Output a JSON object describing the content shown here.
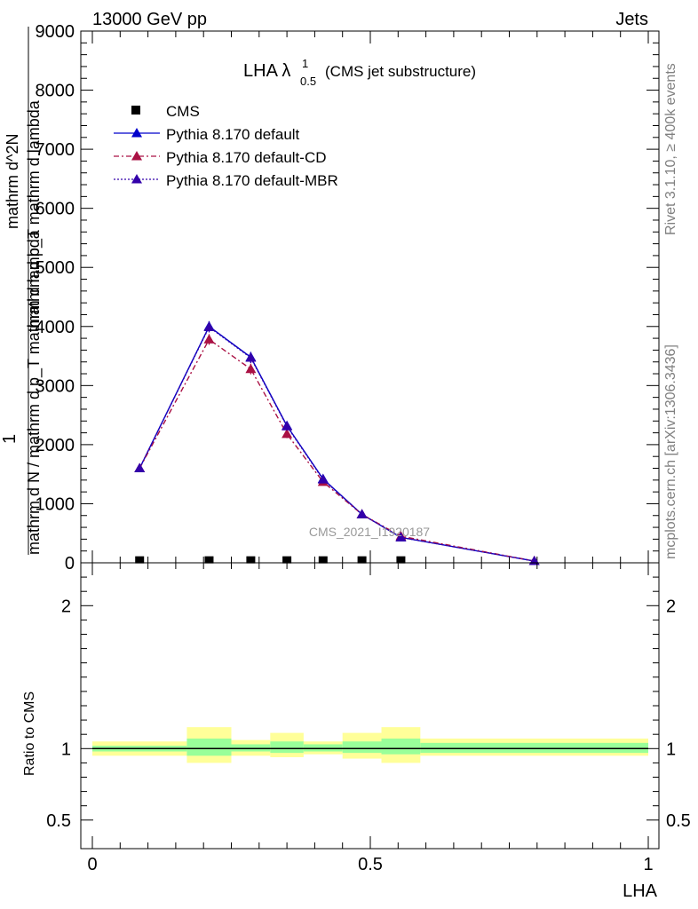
{
  "header": {
    "left": "13000 GeV pp",
    "right": "Jets"
  },
  "side_texts": {
    "rivet": "Rivet 3.1.10, ≥ 400k events",
    "mcplots": "mcplots.cern.ch [arXiv:1306.3436]"
  },
  "title": {
    "main": "LHA λ",
    "sup": "1",
    "sub": "0.5",
    "note": "(CMS jet substructure)"
  },
  "watermark": "CMS_2021_I1920187",
  "ylabel_top": {
    "numerator_one": "1",
    "denominator": "mathrm d N / mathrm d p_T mathrm d lambda",
    "numerator_parts": [
      "mathrm d^2N",
      "mathrm d p_T mathrm d lambda"
    ]
  },
  "ylabel_bottom": "Ratio to CMS",
  "xlabel": "LHA",
  "colors": {
    "default": "#0000cc",
    "cd": "#aa1144",
    "mbr": "#3300aa",
    "band_outer": "#ffff99",
    "band_inner": "#99ff99",
    "ref_line": "#000000"
  },
  "chart_data": [
    {
      "type": "line",
      "panel": "main",
      "xlim": [
        0,
        1
      ],
      "ylim": [
        0,
        9000
      ],
      "y_ticks": [
        0,
        1000,
        2000,
        3000,
        4000,
        5000,
        6000,
        7000,
        8000,
        9000
      ],
      "y_tick_labels": [
        "0",
        "1000",
        "2000",
        "3000",
        "4000",
        "5000",
        "6000",
        "7000",
        "8000",
        "9000"
      ],
      "legend_position": "top-left",
      "series": [
        {
          "name": "CMS",
          "style": "marker-square",
          "x": [
            0.085,
            0.21,
            0.285,
            0.35,
            0.415,
            0.485,
            0.555
          ],
          "y": [
            5,
            5,
            5,
            5,
            5,
            5,
            5
          ]
        },
        {
          "name": "Pythia 8.170 default",
          "style": "solid",
          "x": [
            0.085,
            0.21,
            0.285,
            0.35,
            0.415,
            0.485,
            0.555,
            0.795
          ],
          "y": [
            1600,
            4000,
            3480,
            2320,
            1420,
            820,
            430,
            30
          ],
          "err": [
            0,
            90,
            90,
            70,
            50,
            40,
            30,
            10
          ]
        },
        {
          "name": "Pythia 8.170 default-CD",
          "style": "dashdot",
          "x": [
            0.085,
            0.21,
            0.285,
            0.35,
            0.415,
            0.485,
            0.555,
            0.795
          ],
          "y": [
            1600,
            3780,
            3280,
            2180,
            1370,
            820,
            450,
            30
          ],
          "err": [
            0,
            90,
            90,
            70,
            50,
            40,
            30,
            10
          ]
        },
        {
          "name": "Pythia 8.170 default-MBR",
          "style": "dotted",
          "x": [
            0.085,
            0.21,
            0.285,
            0.35,
            0.415,
            0.485,
            0.555,
            0.795
          ],
          "y": [
            1600,
            3990,
            3470,
            2310,
            1410,
            820,
            430,
            30
          ],
          "err": [
            0,
            90,
            90,
            70,
            50,
            40,
            30,
            10
          ]
        }
      ]
    },
    {
      "type": "area",
      "panel": "ratio",
      "xlim": [
        0,
        1
      ],
      "ylim": [
        0.3,
        2.3
      ],
      "y_ticks": [
        0.5,
        1,
        2
      ],
      "y_tick_labels": [
        "0.5",
        "1",
        "2"
      ],
      "x_ticks": [
        0,
        0.5,
        1
      ],
      "x_tick_labels": [
        "0",
        "0.5",
        "1"
      ],
      "ref_value": 1,
      "bins": [
        {
          "x0": 0.0,
          "x1": 0.17,
          "outer": [
            0.95,
            1.05
          ],
          "inner": [
            0.98,
            1.02
          ]
        },
        {
          "x0": 0.17,
          "x1": 0.25,
          "outer": [
            0.9,
            1.15
          ],
          "inner": [
            0.95,
            1.07
          ]
        },
        {
          "x0": 0.25,
          "x1": 0.32,
          "outer": [
            0.95,
            1.06
          ],
          "inner": [
            0.98,
            1.03
          ]
        },
        {
          "x0": 0.32,
          "x1": 0.38,
          "outer": [
            0.94,
            1.11
          ],
          "inner": [
            0.97,
            1.05
          ]
        },
        {
          "x0": 0.38,
          "x1": 0.45,
          "outer": [
            0.96,
            1.05
          ],
          "inner": [
            0.98,
            1.03
          ]
        },
        {
          "x0": 0.45,
          "x1": 0.52,
          "outer": [
            0.93,
            1.11
          ],
          "inner": [
            0.97,
            1.05
          ]
        },
        {
          "x0": 0.52,
          "x1": 0.59,
          "outer": [
            0.9,
            1.15
          ],
          "inner": [
            0.96,
            1.07
          ]
        },
        {
          "x0": 0.59,
          "x1": 1.0,
          "outer": [
            0.95,
            1.07
          ],
          "inner": [
            0.97,
            1.04
          ]
        }
      ]
    }
  ]
}
